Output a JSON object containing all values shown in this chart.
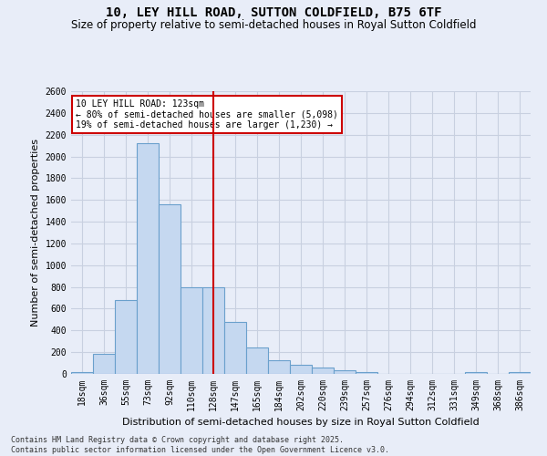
{
  "title": "10, LEY HILL ROAD, SUTTON COLDFIELD, B75 6TF",
  "subtitle": "Size of property relative to semi-detached houses in Royal Sutton Coldfield",
  "xlabel": "Distribution of semi-detached houses by size in Royal Sutton Coldfield",
  "ylabel": "Number of semi-detached properties",
  "categories": [
    "18sqm",
    "36sqm",
    "55sqm",
    "73sqm",
    "92sqm",
    "110sqm",
    "128sqm",
    "147sqm",
    "165sqm",
    "184sqm",
    "202sqm",
    "220sqm",
    "239sqm",
    "257sqm",
    "276sqm",
    "294sqm",
    "312sqm",
    "331sqm",
    "349sqm",
    "368sqm",
    "386sqm"
  ],
  "values": [
    15,
    185,
    680,
    2120,
    1560,
    800,
    800,
    480,
    240,
    130,
    80,
    60,
    35,
    20,
    0,
    0,
    0,
    0,
    20,
    0,
    15
  ],
  "bar_color": "#c5d8f0",
  "bar_edge_color": "#6aa0cc",
  "vline_x": 6,
  "vline_color": "#cc0000",
  "ylim": [
    0,
    2600
  ],
  "yticks": [
    0,
    200,
    400,
    600,
    800,
    1000,
    1200,
    1400,
    1600,
    1800,
    2000,
    2200,
    2400,
    2600
  ],
  "annotation_title": "10 LEY HILL ROAD: 123sqm",
  "annotation_line1": "← 80% of semi-detached houses are smaller (5,098)",
  "annotation_line2": "19% of semi-detached houses are larger (1,230) →",
  "annotation_box_color": "#cc0000",
  "footer_line1": "Contains HM Land Registry data © Crown copyright and database right 2025.",
  "footer_line2": "Contains public sector information licensed under the Open Government Licence v3.0.",
  "bg_color": "#e8edf8",
  "plot_bg_color": "#e8edf8",
  "grid_color": "#c8d0e0",
  "title_fontsize": 10,
  "subtitle_fontsize": 8.5,
  "tick_fontsize": 7,
  "label_fontsize": 8,
  "footer_fontsize": 6
}
